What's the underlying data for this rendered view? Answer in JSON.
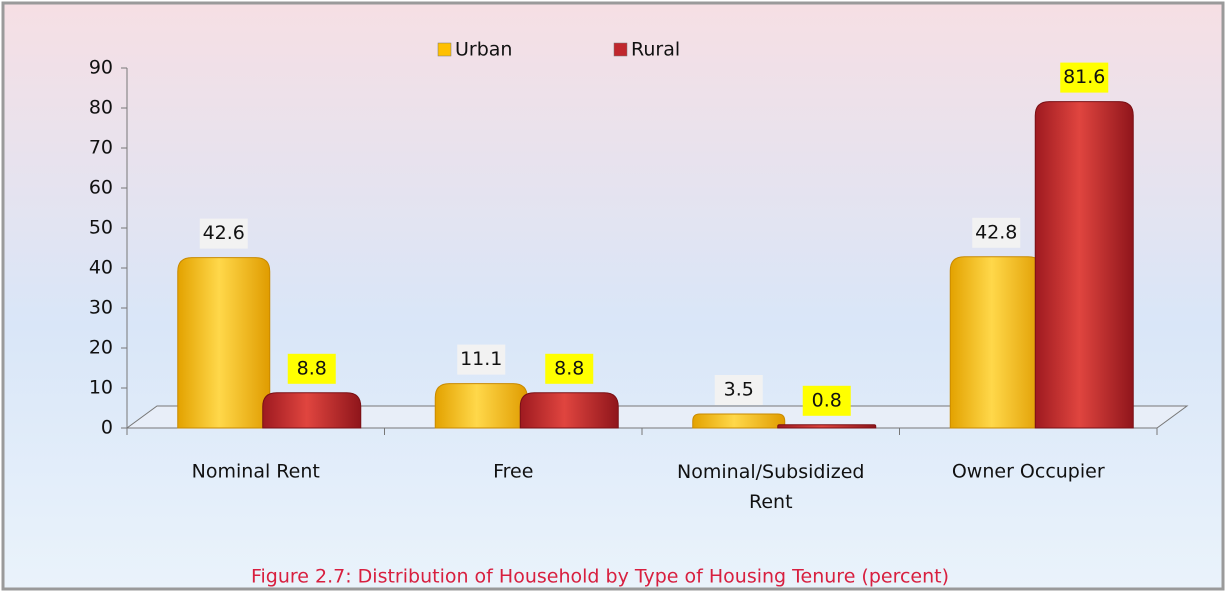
{
  "chart_data": {
    "type": "bar",
    "caption": "Figure 2.7: Distribution of Household by Type of Housing Tenure (percent)",
    "categories": [
      "Nominal Rent",
      "Free",
      "Nominal/Subsidized Rent",
      "Owner Occupier"
    ],
    "series": [
      {
        "name": "Urban",
        "color": "#ffc000",
        "values": [
          42.6,
          11.1,
          3.5,
          42.8
        ]
      },
      {
        "name": "Rural",
        "color": "#c0272d",
        "values": [
          8.8,
          8.8,
          0.8,
          81.6
        ]
      }
    ],
    "ylim": [
      0,
      90
    ],
    "yticks": [
      0,
      10,
      20,
      30,
      40,
      50,
      60,
      70,
      80,
      90
    ],
    "legend": "top",
    "data_labels": true
  }
}
